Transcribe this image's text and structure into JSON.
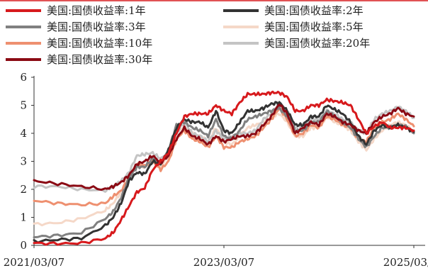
{
  "chart_data": {
    "type": "line",
    "title": "",
    "xlabel": "",
    "ylabel": "",
    "x_ticks": [
      "2021/03/07",
      "2023/03/07",
      "2025/03/07"
    ],
    "y_ticks": [
      "0",
      "1",
      "2",
      "3",
      "4",
      "5",
      "6"
    ],
    "ylim": [
      0,
      6
    ],
    "grid": false,
    "legend_position": "top",
    "dates": [
      "2021-03",
      "2021-06",
      "2021-09",
      "2021-12",
      "2022-01",
      "2022-02",
      "2022-03",
      "2022-04",
      "2022-05",
      "2022-06",
      "2022-07",
      "2022-08",
      "2022-09",
      "2022-10",
      "2022-11",
      "2022-12",
      "2023-01",
      "2023-02",
      "2023-03",
      "2023-04",
      "2023-05",
      "2023-06",
      "2023-07",
      "2023-08",
      "2023-09",
      "2023-10",
      "2023-11",
      "2023-12",
      "2024-01",
      "2024-02",
      "2024-03",
      "2024-04",
      "2024-05",
      "2024-06",
      "2024-07",
      "2024-08",
      "2024-09",
      "2024-10",
      "2024-11",
      "2024-12",
      "2025-01",
      "2025-02",
      "2025-03"
    ],
    "series": [
      {
        "name": "美国:国债收益率:1年",
        "color": "#d7191c",
        "values": [
          0.08,
          0.06,
          0.08,
          0.25,
          0.45,
          0.9,
          1.4,
          1.9,
          2.05,
          2.7,
          3.0,
          3.3,
          4.0,
          4.6,
          4.7,
          4.7,
          4.7,
          5.0,
          4.8,
          4.7,
          5.1,
          5.4,
          5.4,
          5.4,
          5.45,
          5.45,
          5.3,
          4.8,
          4.8,
          5.0,
          5.0,
          5.2,
          5.15,
          5.1,
          5.0,
          4.5,
          4.0,
          4.25,
          4.4,
          4.2,
          4.2,
          4.2,
          4.1
        ]
      },
      {
        "name": "美国:国债收益率:2年",
        "color": "#333333",
        "values": [
          0.14,
          0.2,
          0.25,
          0.7,
          1.0,
          1.5,
          2.3,
          2.6,
          2.55,
          3.0,
          2.9,
          3.4,
          4.2,
          4.5,
          4.4,
          4.4,
          4.2,
          4.8,
          4.1,
          4.0,
          4.4,
          4.8,
          4.8,
          4.9,
          5.05,
          5.1,
          4.8,
          4.3,
          4.3,
          4.6,
          4.6,
          5.0,
          4.85,
          4.7,
          4.4,
          3.9,
          3.6,
          4.1,
          4.3,
          4.2,
          4.3,
          4.2,
          4.05
        ]
      },
      {
        "name": "美国:国债收益率:3年",
        "color": "#808080",
        "values": [
          0.3,
          0.35,
          0.45,
          0.95,
          1.2,
          1.7,
          2.4,
          2.8,
          2.8,
          3.1,
          2.9,
          3.4,
          4.3,
          4.4,
          4.2,
          4.1,
          3.9,
          4.5,
          3.9,
          3.8,
          4.1,
          4.5,
          4.6,
          4.7,
          4.8,
          4.9,
          4.6,
          4.1,
          4.1,
          4.4,
          4.4,
          4.8,
          4.6,
          4.4,
          4.2,
          3.8,
          3.5,
          3.9,
          4.2,
          4.2,
          4.3,
          4.25,
          4.0
        ]
      },
      {
        "name": "美国:国债收益率:5年",
        "color": "#f5d8c8",
        "values": [
          0.75,
          0.8,
          0.95,
          1.25,
          1.5,
          1.9,
          2.5,
          2.9,
          2.8,
          3.05,
          2.8,
          3.2,
          4.1,
          4.2,
          4.0,
          3.9,
          3.7,
          4.2,
          3.7,
          3.6,
          3.9,
          4.2,
          4.3,
          4.4,
          4.6,
          4.7,
          4.4,
          3.9,
          3.9,
          4.2,
          4.2,
          4.6,
          4.4,
          4.3,
          4.1,
          3.7,
          3.4,
          3.8,
          4.1,
          4.3,
          4.4,
          4.3,
          4.05
        ]
      },
      {
        "name": "美国:国债收益率:10年",
        "color": "#ee9070",
        "values": [
          1.6,
          1.5,
          1.45,
          1.5,
          1.75,
          1.95,
          2.4,
          2.9,
          2.85,
          3.0,
          2.7,
          3.0,
          3.8,
          4.1,
          3.8,
          3.7,
          3.5,
          3.9,
          3.5,
          3.5,
          3.7,
          3.8,
          3.9,
          4.2,
          4.5,
          4.9,
          4.5,
          3.9,
          4.0,
          4.3,
          4.2,
          4.6,
          4.5,
          4.3,
          4.2,
          3.8,
          3.7,
          4.2,
          4.4,
          4.5,
          4.7,
          4.5,
          4.25
        ]
      },
      {
        "name": "美国:国债收益率:20年",
        "color": "#c4c4c4",
        "values": [
          2.1,
          2.1,
          2.0,
          1.95,
          2.1,
          2.3,
          2.6,
          3.2,
          3.25,
          3.3,
          3.1,
          3.3,
          4.0,
          4.4,
          4.0,
          3.9,
          3.7,
          4.1,
          3.8,
          3.9,
          4.0,
          4.0,
          4.1,
          4.5,
          4.7,
          5.1,
          4.8,
          4.2,
          4.3,
          4.5,
          4.5,
          4.8,
          4.7,
          4.5,
          4.4,
          4.1,
          4.0,
          4.5,
          4.7,
          4.8,
          4.95,
          4.8,
          4.55
        ]
      },
      {
        "name": "美国:国债收益率:30年",
        "color": "#8b0a14",
        "values": [
          2.3,
          2.2,
          2.1,
          2.0,
          2.1,
          2.25,
          2.5,
          2.9,
          3.0,
          3.2,
          2.95,
          3.2,
          3.8,
          4.2,
          3.9,
          3.8,
          3.6,
          3.9,
          3.7,
          3.8,
          3.9,
          3.9,
          4.0,
          4.3,
          4.6,
          5.05,
          4.7,
          4.0,
          4.2,
          4.4,
          4.3,
          4.7,
          4.6,
          4.4,
          4.3,
          4.1,
          4.0,
          4.4,
          4.6,
          4.7,
          4.9,
          4.7,
          4.6
        ]
      }
    ]
  },
  "colors": {
    "axis": "#333333",
    "text": "#222222",
    "background": "#ffffff"
  }
}
